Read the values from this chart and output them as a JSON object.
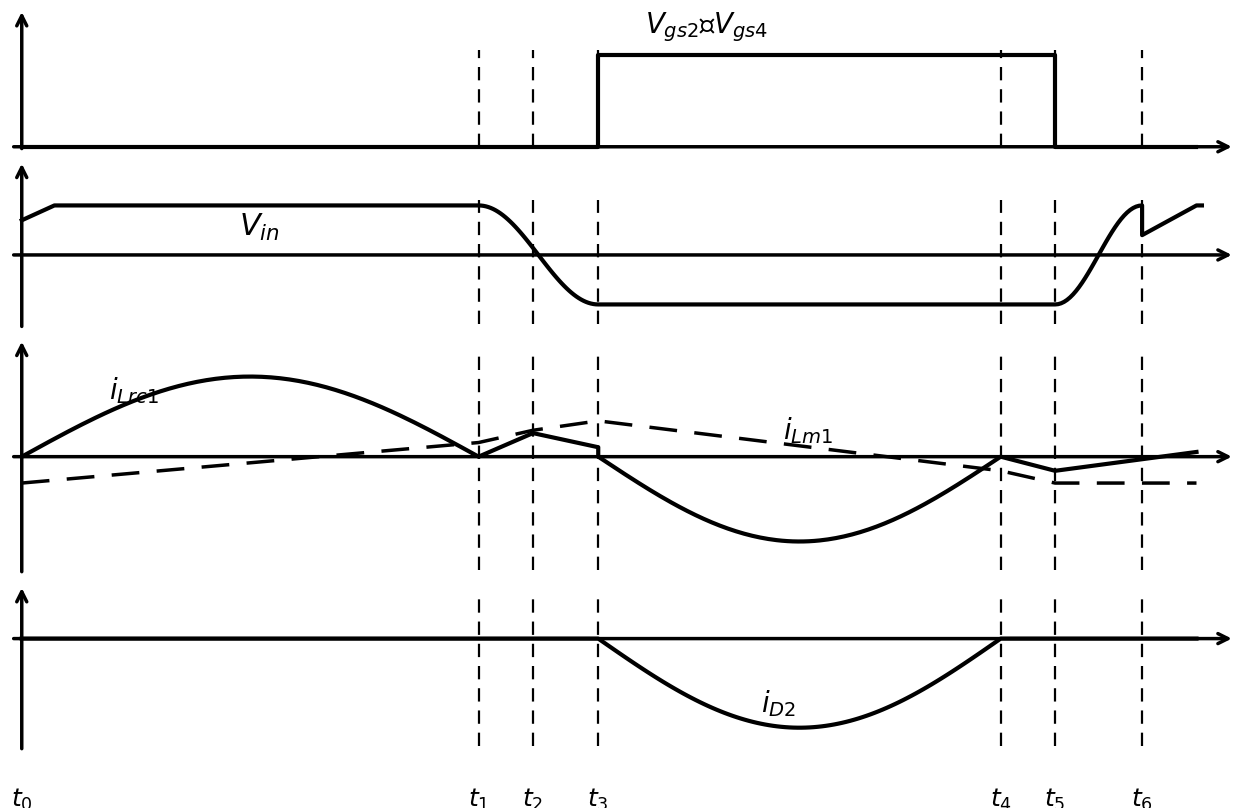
{
  "background_color": "#ffffff",
  "time_points": {
    "t0": 0.0,
    "t1": 4.2,
    "t2": 4.7,
    "t3": 5.3,
    "t4": 9.0,
    "t5": 9.5,
    "t6": 10.3
  },
  "xlim": [
    -0.2,
    11.2
  ],
  "panel_labels": [
    "Vgs2_Vgs4",
    "Vin",
    "iLrc1_iLm1",
    "iD2"
  ],
  "line_color": "#000000",
  "lw_main": 2.5,
  "lw_thin": 1.8
}
